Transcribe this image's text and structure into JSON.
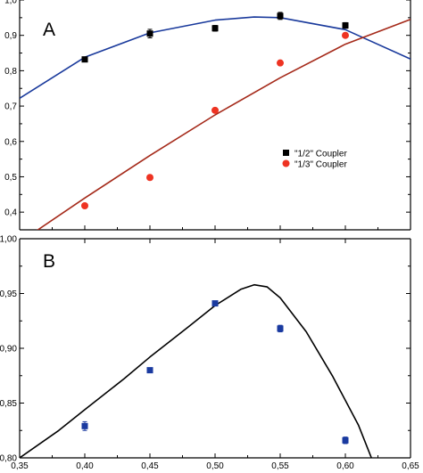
{
  "chart_data": [
    {
      "panel": "A",
      "type": "scatter",
      "letter": "A",
      "xlim": [
        0.35,
        0.65
      ],
      "ylim": [
        0.35,
        1.0
      ],
      "y_ticks": [
        "0,4",
        "0,5",
        "0,6",
        "0,7",
        "0,8",
        "0,9",
        "1,0"
      ],
      "legend_position": "center-right",
      "series": [
        {
          "name": "\"1/2\" Coupler",
          "color": "#000000",
          "marker": "square",
          "points": [
            {
              "x": 0.4,
              "y": 0.832,
              "err": 0.006
            },
            {
              "x": 0.45,
              "y": 0.905,
              "err": 0.012
            },
            {
              "x": 0.5,
              "y": 0.92,
              "err": 0.008
            },
            {
              "x": 0.55,
              "y": 0.955,
              "err": 0.01
            },
            {
              "x": 0.6,
              "y": 0.928,
              "err": 0.008
            }
          ]
        },
        {
          "name": "\"1/3\" Coupler",
          "color": "#ee3322",
          "marker": "circle",
          "points": [
            {
              "x": 0.4,
              "y": 0.418
            },
            {
              "x": 0.45,
              "y": 0.498
            },
            {
              "x": 0.5,
              "y": 0.688
            },
            {
              "x": 0.55,
              "y": 0.822
            },
            {
              "x": 0.6,
              "y": 0.9
            }
          ]
        }
      ],
      "fits": [
        {
          "color": "#1a3a9c",
          "points": [
            [
              0.35,
              0.722
            ],
            [
              0.4,
              0.838
            ],
            [
              0.45,
              0.907
            ],
            [
              0.5,
              0.943
            ],
            [
              0.53,
              0.952
            ],
            [
              0.55,
              0.95
            ],
            [
              0.6,
              0.916
            ],
            [
              0.65,
              0.833
            ]
          ]
        },
        {
          "color": "#a52a1a",
          "points": [
            [
              0.35,
              0.315
            ],
            [
              0.4,
              0.44
            ],
            [
              0.45,
              0.56
            ],
            [
              0.5,
              0.675
            ],
            [
              0.55,
              0.78
            ],
            [
              0.6,
              0.875
            ],
            [
              0.65,
              0.945
            ]
          ]
        }
      ]
    },
    {
      "panel": "B",
      "type": "scatter",
      "letter": "B",
      "xlim": [
        0.35,
        0.65
      ],
      "ylim": [
        0.8,
        1.0
      ],
      "x_ticks": [
        "0,35",
        "0,40",
        "0,45",
        "0,50",
        "0,55",
        "0,60",
        "0,65"
      ],
      "y_ticks": [
        "0,80",
        "0,85",
        "0,90",
        "0,95",
        "1,00"
      ],
      "series": [
        {
          "color": "#1a3aa0",
          "marker": "square",
          "points": [
            {
              "x": 0.4,
              "y": 0.829,
              "err": 0.004
            },
            {
              "x": 0.45,
              "y": 0.88,
              "err": 0.002
            },
            {
              "x": 0.5,
              "y": 0.941,
              "err": 0.002
            },
            {
              "x": 0.55,
              "y": 0.918,
              "err": 0.003
            },
            {
              "x": 0.6,
              "y": 0.816,
              "err": 0.003
            }
          ]
        }
      ],
      "fits": [
        {
          "color": "#000000",
          "points": [
            [
              0.35,
              0.8
            ],
            [
              0.38,
              0.825
            ],
            [
              0.4,
              0.844
            ],
            [
              0.43,
              0.872
            ],
            [
              0.45,
              0.892
            ],
            [
              0.48,
              0.92
            ],
            [
              0.5,
              0.939
            ],
            [
              0.52,
              0.954
            ],
            [
              0.53,
              0.958
            ],
            [
              0.54,
              0.956
            ],
            [
              0.55,
              0.946
            ],
            [
              0.57,
              0.915
            ],
            [
              0.59,
              0.875
            ],
            [
              0.61,
              0.83
            ],
            [
              0.62,
              0.8
            ]
          ]
        }
      ]
    }
  ]
}
